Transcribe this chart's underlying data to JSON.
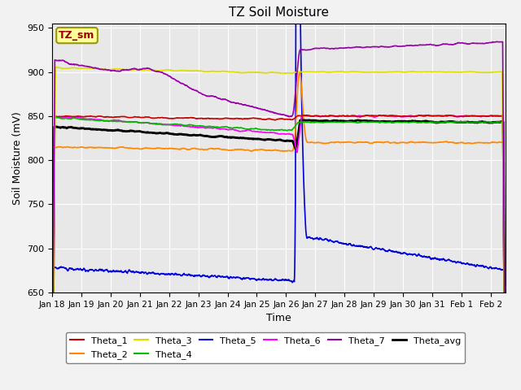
{
  "title": "TZ Soil Moisture",
  "xlabel": "Time",
  "ylabel": "Soil Moisture (mV)",
  "ylim": [
    650,
    955
  ],
  "xlim": [
    0,
    15.5
  ],
  "background_color": "#e8e8e8",
  "fig_bg": "#f2f2f2",
  "series": {
    "Theta_1": {
      "color": "#cc0000",
      "lw": 1.2
    },
    "Theta_2": {
      "color": "#ff8800",
      "lw": 1.2
    },
    "Theta_3": {
      "color": "#dddd00",
      "lw": 1.2
    },
    "Theta_4": {
      "color": "#00bb00",
      "lw": 1.2
    },
    "Theta_5": {
      "color": "#0000dd",
      "lw": 1.2
    },
    "Theta_6": {
      "color": "#ff00ff",
      "lw": 1.2
    },
    "Theta_7": {
      "color": "#9900aa",
      "lw": 1.2
    },
    "Theta_avg": {
      "color": "#000000",
      "lw": 2.0
    }
  },
  "xtick_labels": [
    "Jan 18",
    "Jan 19",
    "Jan 20",
    "Jan 21",
    "Jan 22",
    "Jan 23",
    "Jan 24",
    "Jan 25",
    "Jan 26",
    "Jan 27",
    "Jan 28",
    "Jan 29",
    "Jan 30",
    "Jan 31",
    "Feb 1",
    "Feb 2"
  ],
  "xtick_positions": [
    0,
    1,
    2,
    3,
    4,
    5,
    6,
    7,
    8,
    9,
    10,
    11,
    12,
    13,
    14,
    15
  ],
  "ytick_positions": [
    650,
    700,
    750,
    800,
    850,
    900,
    950
  ],
  "label_box_text": "TZ_sm",
  "label_box_bg": "#ffff99",
  "label_box_border": "#999900"
}
